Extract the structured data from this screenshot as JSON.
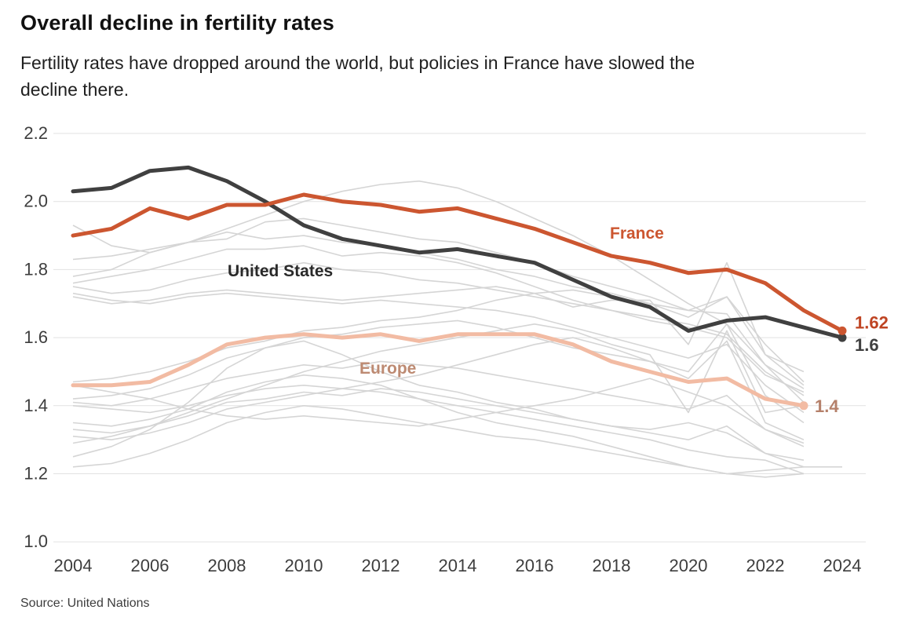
{
  "page": {
    "title": "Overall decline in fertility rates",
    "subtitle_lines": [
      "Fertility rates have dropped around the world, but policies in France have slowed the",
      "decline there."
    ],
    "source_label": "Source: United Nations"
  },
  "chart_data": {
    "type": "line",
    "title": "Overall decline in fertility rates",
    "subtitle": "Fertility rates have dropped around the world, but policies in France have slowed the decline there.",
    "source": "Source: United Nations",
    "xlabel": "",
    "ylabel": "",
    "ylim": [
      1.0,
      2.2
    ],
    "xlim": [
      2004,
      2024
    ],
    "grid": true,
    "grid_color": "#e2e2e2",
    "axis_label_color": "#3d3d3d",
    "y_ticks": [
      {
        "value": 2.2,
        "label": "2.2"
      },
      {
        "value": 2.0,
        "label": "2.0"
      },
      {
        "value": 1.8,
        "label": "1.8"
      },
      {
        "value": 1.6,
        "label": "1.6"
      },
      {
        "value": 1.4,
        "label": "1.4"
      },
      {
        "value": 1.2,
        "label": "1.2"
      },
      {
        "value": 1.0,
        "label": "1.0"
      }
    ],
    "x_ticks": [
      {
        "year": 2004,
        "label": "2004"
      },
      {
        "year": 2006,
        "label": "2006"
      },
      {
        "year": 2008,
        "label": "2008"
      },
      {
        "year": 2010,
        "label": "2010"
      },
      {
        "year": 2012,
        "label": "2012"
      },
      {
        "year": 2014,
        "label": "2014"
      },
      {
        "year": 2016,
        "label": "2016"
      },
      {
        "year": 2018,
        "label": "2018"
      },
      {
        "year": 2020,
        "label": "2020"
      },
      {
        "year": 2022,
        "label": "2022"
      },
      {
        "year": 2024,
        "label": "2024"
      }
    ],
    "series": [
      {
        "name": "France",
        "color": "#cc5630",
        "name_color": "#cc5630",
        "end_label": "1.62",
        "end_label_color": "#bf4423",
        "start_year": 2004,
        "values": [
          1.9,
          1.92,
          1.98,
          1.95,
          1.99,
          1.99,
          2.02,
          2.0,
          1.99,
          1.97,
          1.98,
          1.95,
          1.92,
          1.88,
          1.84,
          1.82,
          1.79,
          1.8,
          1.76,
          1.68,
          1.62
        ]
      },
      {
        "name": "United States",
        "color": "#404040",
        "name_color": "#2a2a2a",
        "end_label": "1.6",
        "end_label_color": "#404040",
        "start_year": 2004,
        "values": [
          2.03,
          2.04,
          2.09,
          2.1,
          2.06,
          2.0,
          1.93,
          1.89,
          1.87,
          1.85,
          1.86,
          1.84,
          1.82,
          1.77,
          1.72,
          1.69,
          1.62,
          1.65,
          1.66,
          1.63,
          1.6
        ]
      },
      {
        "name": "Europe",
        "color": "#f2bba3",
        "name_color": "#bd8a72",
        "end_label": "1.4",
        "end_label_color": "#b5806a",
        "start_year": 2004,
        "values": [
          1.46,
          1.46,
          1.47,
          1.52,
          1.58,
          1.6,
          1.61,
          1.6,
          1.61,
          1.59,
          1.61,
          1.61,
          1.61,
          1.58,
          1.53,
          1.5,
          1.47,
          1.48,
          1.42,
          1.4
        ]
      }
    ],
    "background_series_color": "#d5d5d5",
    "background_series": [
      {
        "start_year": 2004,
        "values": [
          1.93,
          1.87,
          1.85,
          1.88,
          1.92,
          1.96,
          2.0,
          2.03,
          2.05,
          2.06,
          2.04,
          2.0,
          1.95,
          1.9,
          1.84,
          1.77,
          1.7,
          1.64,
          1.52,
          1.45
        ]
      },
      {
        "start_year": 2004,
        "values": [
          1.72,
          1.7,
          1.71,
          1.73,
          1.74,
          1.73,
          1.72,
          1.71,
          1.72,
          1.73,
          1.74,
          1.75,
          1.73,
          1.69,
          1.71,
          1.71,
          1.58,
          1.82,
          1.55,
          1.5
        ]
      },
      {
        "start_year": 2004,
        "values": [
          1.83,
          1.84,
          1.86,
          1.88,
          1.91,
          1.89,
          1.9,
          1.88,
          1.87,
          1.85,
          1.83,
          1.8,
          1.78,
          1.75,
          1.73,
          1.7,
          1.68,
          1.72,
          1.55,
          1.46
        ]
      },
      {
        "start_year": 2004,
        "values": [
          1.78,
          1.8,
          1.85,
          1.88,
          1.89,
          1.94,
          1.95,
          1.93,
          1.91,
          1.89,
          1.88,
          1.85,
          1.82,
          1.78,
          1.75,
          1.72,
          1.68,
          1.67,
          1.52,
          1.41
        ]
      },
      {
        "start_year": 2004,
        "values": [
          1.76,
          1.78,
          1.8,
          1.83,
          1.86,
          1.86,
          1.87,
          1.84,
          1.85,
          1.84,
          1.82,
          1.79,
          1.75,
          1.71,
          1.68,
          1.65,
          1.63,
          1.6,
          1.49,
          1.44
        ]
      },
      {
        "start_year": 2004,
        "values": [
          1.75,
          1.73,
          1.74,
          1.77,
          1.79,
          1.8,
          1.82,
          1.8,
          1.79,
          1.77,
          1.76,
          1.74,
          1.72,
          1.7,
          1.68,
          1.66,
          1.64,
          1.61,
          1.5,
          1.43
        ]
      },
      {
        "start_year": 2004,
        "values": [
          1.73,
          1.71,
          1.7,
          1.72,
          1.73,
          1.72,
          1.71,
          1.7,
          1.71,
          1.7,
          1.69,
          1.68,
          1.66,
          1.63,
          1.6,
          1.57,
          1.54,
          1.58,
          1.46,
          1.38
        ]
      },
      {
        "start_year": 2004,
        "values": [
          1.47,
          1.48,
          1.5,
          1.53,
          1.57,
          1.59,
          1.62,
          1.63,
          1.65,
          1.66,
          1.68,
          1.71,
          1.73,
          1.74,
          1.72,
          1.7,
          1.66,
          1.72,
          1.58,
          1.47
        ]
      },
      {
        "start_year": 2004,
        "values": [
          1.42,
          1.43,
          1.45,
          1.49,
          1.54,
          1.57,
          1.6,
          1.61,
          1.63,
          1.64,
          1.65,
          1.63,
          1.6,
          1.57,
          1.55,
          1.53,
          1.5,
          1.64,
          1.43,
          1.35
        ]
      },
      {
        "start_year": 2004,
        "values": [
          1.41,
          1.4,
          1.42,
          1.45,
          1.48,
          1.5,
          1.52,
          1.51,
          1.53,
          1.52,
          1.51,
          1.49,
          1.47,
          1.45,
          1.43,
          1.41,
          1.39,
          1.43,
          1.33,
          1.29
        ]
      },
      {
        "start_year": 2004,
        "values": [
          1.4,
          1.39,
          1.38,
          1.4,
          1.43,
          1.45,
          1.46,
          1.45,
          1.44,
          1.42,
          1.4,
          1.38,
          1.36,
          1.34,
          1.32,
          1.3,
          1.27,
          1.25,
          1.24,
          1.2
        ]
      },
      {
        "start_year": 2004,
        "values": [
          1.35,
          1.34,
          1.36,
          1.39,
          1.44,
          1.47,
          1.49,
          1.48,
          1.46,
          1.42,
          1.38,
          1.35,
          1.33,
          1.31,
          1.28,
          1.25,
          1.22,
          1.2,
          1.19,
          1.2
        ]
      },
      {
        "start_year": 2004,
        "values": [
          1.33,
          1.32,
          1.34,
          1.37,
          1.41,
          1.42,
          1.44,
          1.43,
          1.45,
          1.44,
          1.42,
          1.4,
          1.38,
          1.36,
          1.34,
          1.32,
          1.3,
          1.34,
          1.26,
          1.22
        ]
      },
      {
        "start_year": 2004,
        "values": [
          1.31,
          1.3,
          1.32,
          1.35,
          1.39,
          1.41,
          1.43,
          1.45,
          1.47,
          1.49,
          1.52,
          1.55,
          1.58,
          1.6,
          1.57,
          1.53,
          1.48,
          1.59,
          1.35,
          1.3
        ]
      },
      {
        "start_year": 2004,
        "values": [
          1.29,
          1.31,
          1.34,
          1.38,
          1.42,
          1.46,
          1.5,
          1.53,
          1.56,
          1.58,
          1.6,
          1.62,
          1.64,
          1.62,
          1.58,
          1.55,
          1.38,
          1.62,
          1.38,
          1.4
        ]
      },
      {
        "start_year": 2004,
        "values": [
          1.25,
          1.28,
          1.33,
          1.41,
          1.51,
          1.57,
          1.59,
          1.55,
          1.5,
          1.46,
          1.44,
          1.41,
          1.39,
          1.36,
          1.34,
          1.33,
          1.35,
          1.32,
          1.26,
          1.24
        ]
      },
      {
        "start_year": 2004,
        "values": [
          1.22,
          1.23,
          1.26,
          1.3,
          1.35,
          1.38,
          1.4,
          1.39,
          1.37,
          1.35,
          1.33,
          1.31,
          1.3,
          1.28,
          1.26,
          1.24,
          1.22,
          1.2,
          1.21,
          1.22,
          1.22
        ]
      },
      {
        "start_year": 2004,
        "values": [
          1.46,
          1.44,
          1.42,
          1.39,
          1.37,
          1.36,
          1.37,
          1.36,
          1.35,
          1.34,
          1.36,
          1.38,
          1.4,
          1.42,
          1.45,
          1.48,
          1.44,
          1.4,
          1.33,
          1.28
        ]
      }
    ]
  }
}
